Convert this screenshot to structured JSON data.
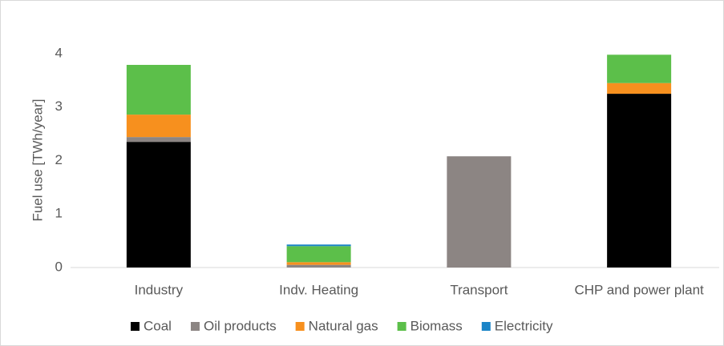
{
  "chart_data": {
    "type": "stacked_bar",
    "y_label": "Fuel use [TWh/year]",
    "categories": [
      "Industry",
      "Indv. Heating",
      "Transport",
      "CHP and power plant"
    ],
    "series": [
      {
        "name": "Coal",
        "color": "#000000",
        "values": [
          2.35,
          0,
          0,
          3.25
        ]
      },
      {
        "name": "Oil products",
        "color": "#8c8583",
        "values": [
          0.09,
          0.05,
          2.08,
          0
        ]
      },
      {
        "name": "Natural gas",
        "color": "#f7901e",
        "values": [
          0.42,
          0.05,
          0,
          0.2
        ]
      },
      {
        "name": "Biomass",
        "color": "#5cbf4a",
        "values": [
          0.93,
          0.3,
          0,
          0.53
        ]
      },
      {
        "name": "Electricity",
        "color": "#1a84c7",
        "values": [
          0,
          0.03,
          0,
          0
        ]
      }
    ],
    "ylim": [
      0,
      4
    ],
    "yticks": [
      0,
      1,
      2,
      3,
      4
    ],
    "grid": false,
    "legend": "bottom"
  }
}
